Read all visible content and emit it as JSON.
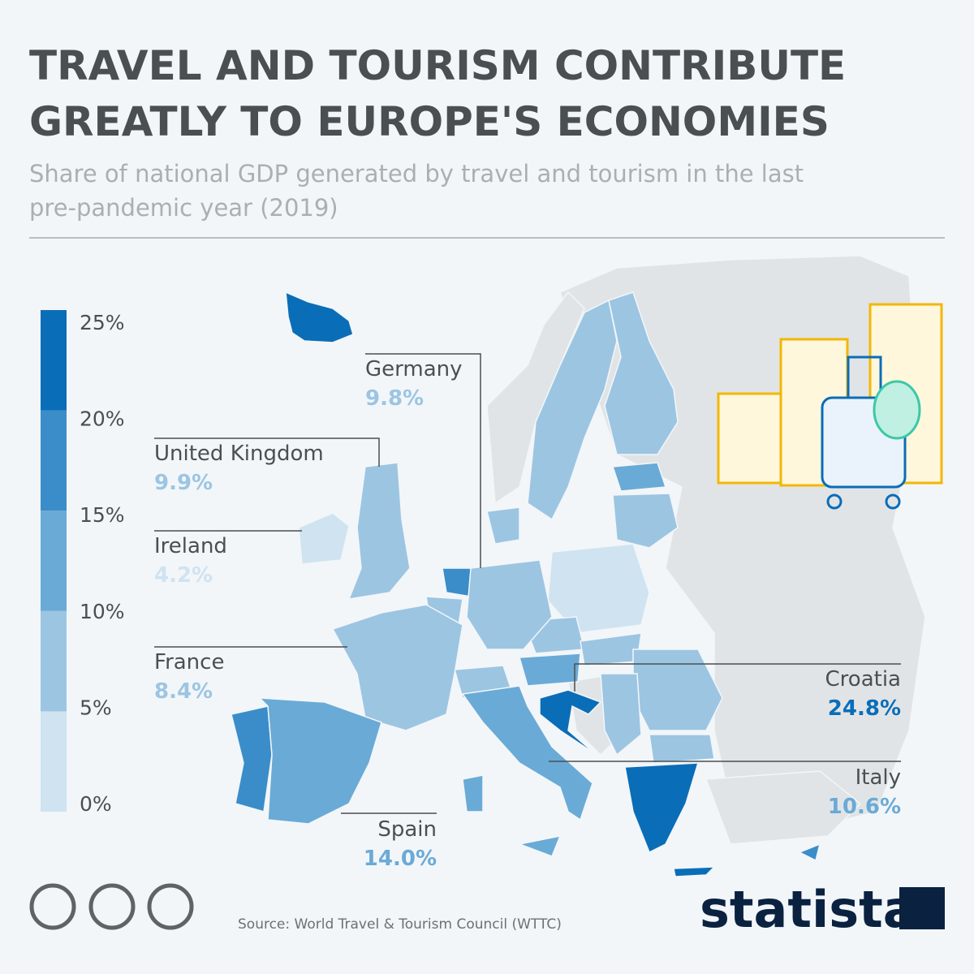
{
  "title": "TRAVEL AND TOURISM CONTRIBUTE GREATLY TO EUROPE'S ECONOMIES",
  "title_lines": [
    "TRAVEL AND TOURISM CONTRIBUTE",
    "GREATLY TO EUROPE'S ECONOMIES"
  ],
  "subtitle_lines": [
    "Share of national GDP generated by travel and tourism in the last",
    "pre-pandemic year (2019)"
  ],
  "legend": {
    "range": [
      0,
      25
    ],
    "ticks": [
      {
        "value": 0,
        "label": "0%"
      },
      {
        "value": 5,
        "label": "5%"
      },
      {
        "value": 10,
        "label": "10%"
      },
      {
        "value": 15,
        "label": "15%"
      },
      {
        "value": 20,
        "label": "20%"
      },
      {
        "value": 25,
        "label": "25%"
      }
    ],
    "colors": [
      "#cfe3f0",
      "#9cc5e2",
      "#6aaad6",
      "#3a8dc9",
      "#0a6db8"
    ]
  },
  "callouts": [
    {
      "name": "Germany",
      "value": 9.8,
      "value_label": "9.8%"
    },
    {
      "name": "United Kingdom",
      "value": 9.9,
      "value_label": "9.9%"
    },
    {
      "name": "Ireland",
      "value": 4.2,
      "value_label": "4.2%"
    },
    {
      "name": "France",
      "value": 8.4,
      "value_label": "8.4%"
    },
    {
      "name": "Croatia",
      "value": 24.8,
      "value_label": "24.8%"
    },
    {
      "name": "Italy",
      "value": 10.6,
      "value_label": "10.6%"
    },
    {
      "name": "Spain",
      "value": 14.0,
      "value_label": "14.0%"
    }
  ],
  "source": "Source: World Travel & Tourism Council (WTTC)",
  "brand": "statista"
}
